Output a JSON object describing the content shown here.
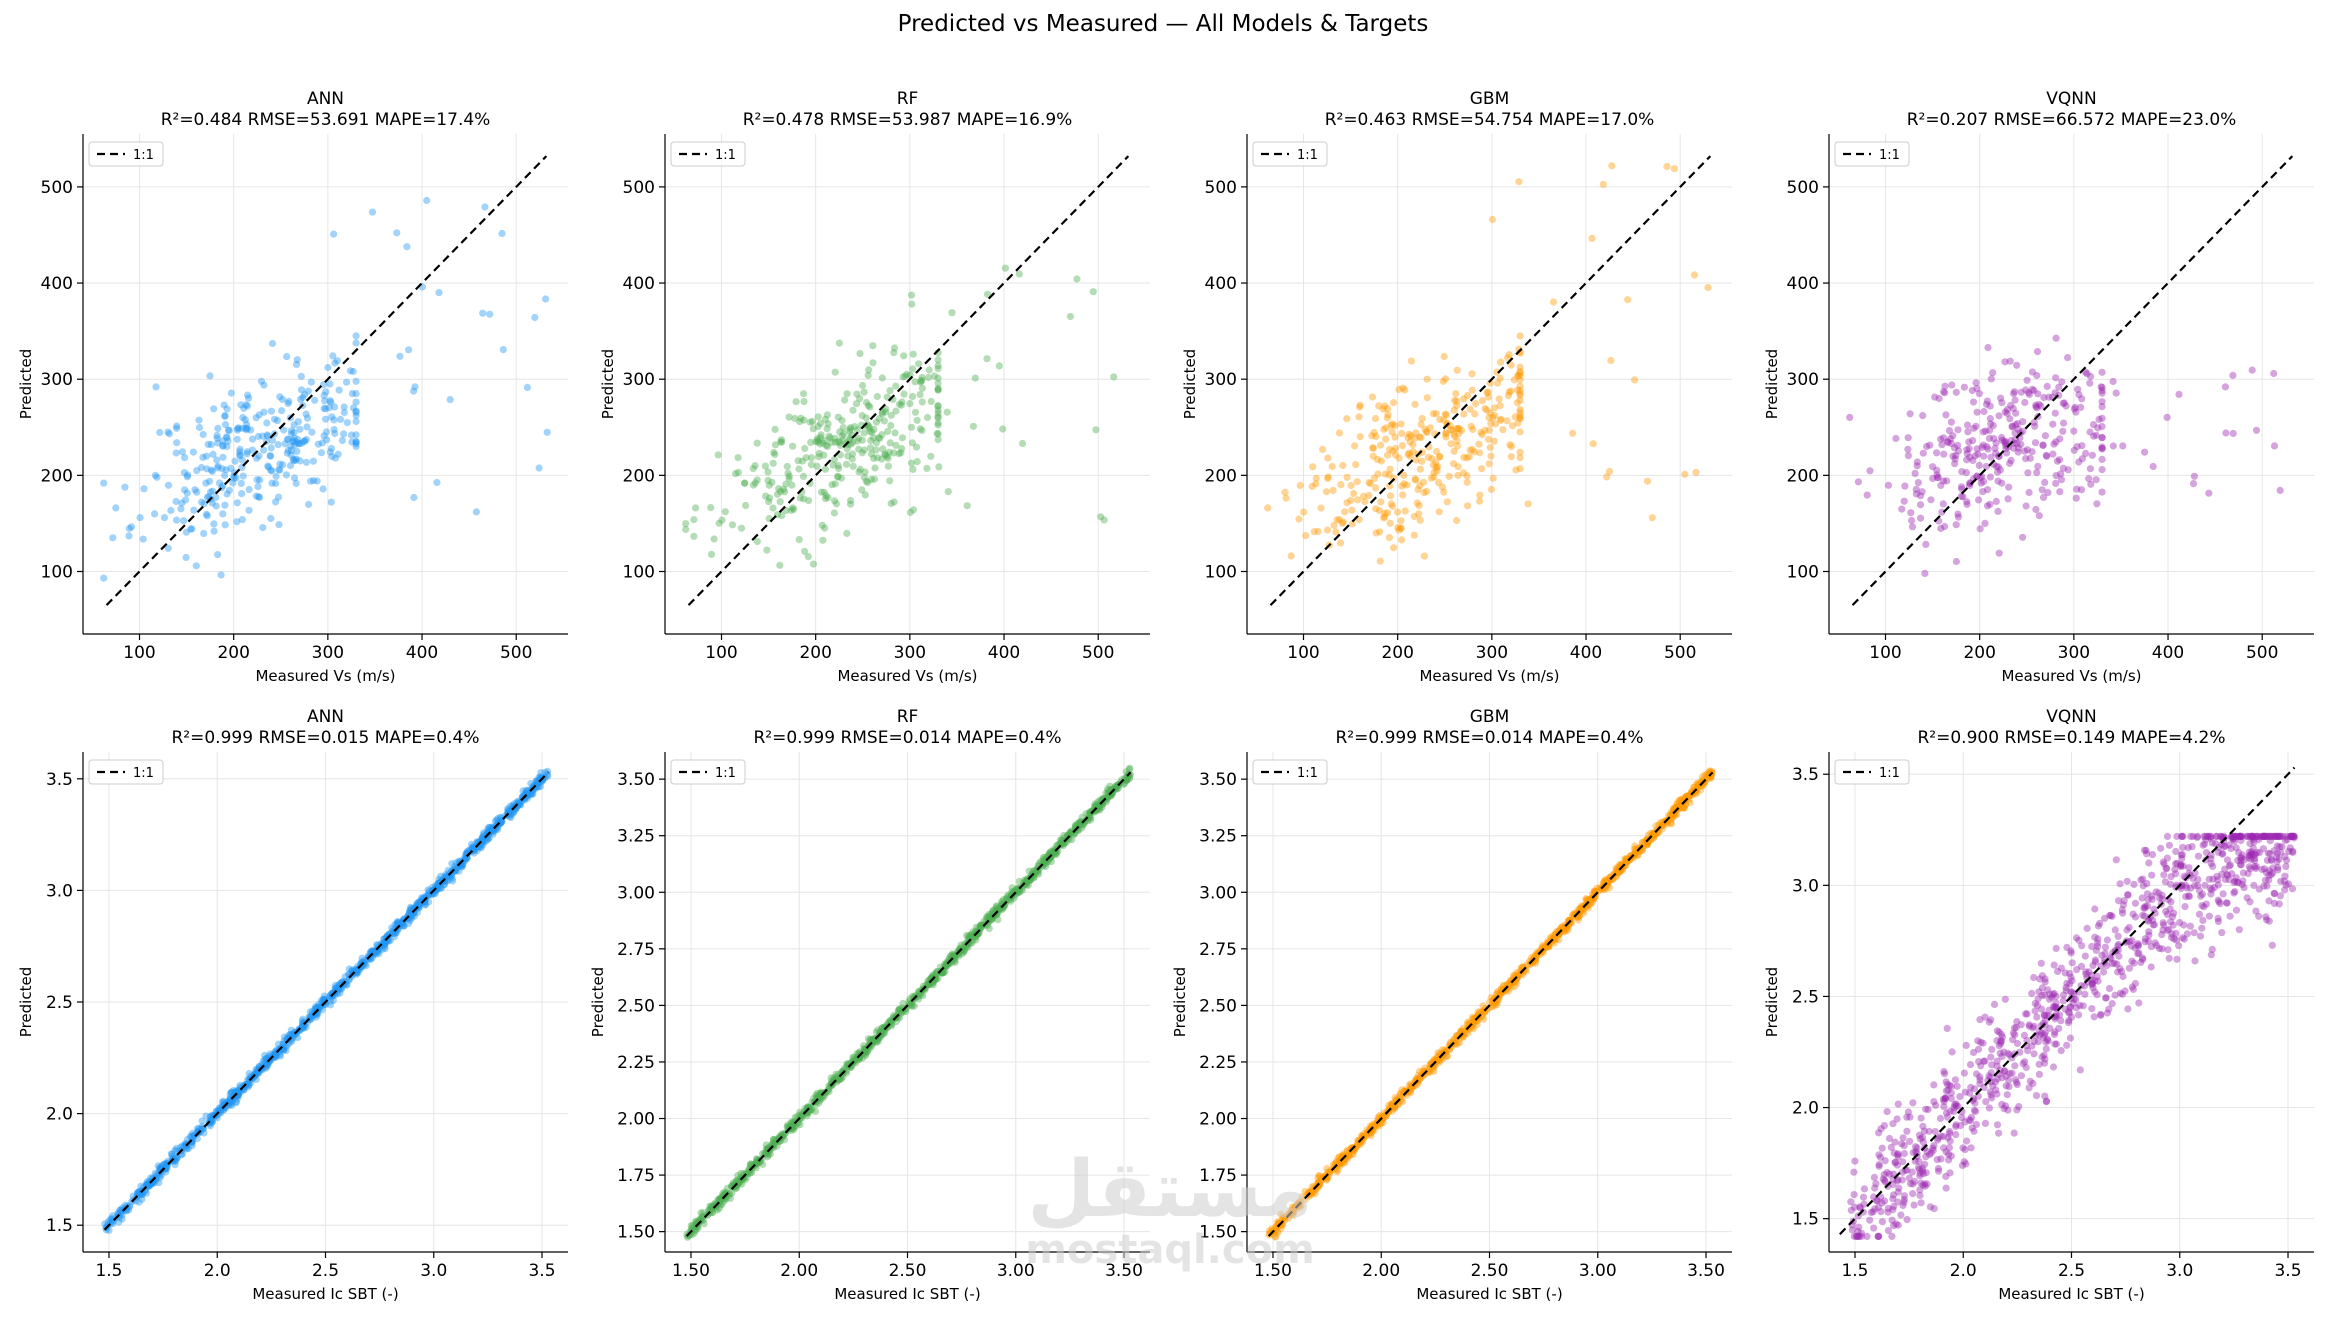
{
  "suptitle": "Predicted vs Measured — All Models & Targets",
  "watermark": {
    "arabic": "مستقل",
    "latin": "mostaql.com"
  },
  "chart_data": [
    {
      "type": "scatter",
      "model": "ANN",
      "title": "ANN",
      "subtitle": "R²=0.484  RMSE=53.691  MAPE=17.4%",
      "xlabel": "Measured Vs (m/s)",
      "ylabel": "Predicted",
      "xlim": [
        40,
        555
      ],
      "ylim": [
        35,
        555
      ],
      "xticks": [
        100,
        200,
        300,
        400,
        500
      ],
      "yticks": [
        100,
        200,
        300,
        400,
        500
      ],
      "tick_decimals": 0,
      "color": "#2196F3",
      "legend": "1:1",
      "legend_loc": "upper left",
      "grid": true,
      "line_1to1": [
        65,
        532
      ],
      "seed": 11,
      "n": 330,
      "center": 228,
      "spread": 62,
      "slope": 0.42,
      "noise": 38,
      "tail_x": [
        300,
        535
      ],
      "tail_y": [
        160,
        520
      ],
      "tail_n": 26
    },
    {
      "type": "scatter",
      "model": "RF",
      "title": "RF",
      "subtitle": "R²=0.478  RMSE=53.987  MAPE=16.9%",
      "xlabel": "Measured Vs (m/s)",
      "ylabel": "Predicted",
      "xlim": [
        40,
        555
      ],
      "ylim": [
        35,
        555
      ],
      "xticks": [
        100,
        200,
        300,
        400,
        500
      ],
      "yticks": [
        100,
        200,
        300,
        400,
        500
      ],
      "tick_decimals": 0,
      "color": "#4CAF50",
      "legend": "1:1",
      "legend_loc": "upper left",
      "grid": true,
      "line_1to1": [
        65,
        532
      ],
      "seed": 23,
      "n": 330,
      "center": 228,
      "spread": 62,
      "slope": 0.45,
      "noise": 36,
      "tail_x": [
        300,
        535
      ],
      "tail_y": [
        150,
        480
      ],
      "tail_n": 24
    },
    {
      "type": "scatter",
      "model": "GBM",
      "title": "GBM",
      "subtitle": "R²=0.463  RMSE=54.754  MAPE=17.0%",
      "xlabel": "Measured Vs (m/s)",
      "ylabel": "Predicted",
      "xlim": [
        40,
        555
      ],
      "ylim": [
        35,
        555
      ],
      "xticks": [
        100,
        200,
        300,
        400,
        500
      ],
      "yticks": [
        100,
        200,
        300,
        400,
        500
      ],
      "tick_decimals": 0,
      "color": "#FF9800",
      "legend": "1:1",
      "legend_loc": "upper left",
      "grid": true,
      "line_1to1": [
        65,
        532
      ],
      "seed": 37,
      "n": 330,
      "center": 228,
      "spread": 62,
      "slope": 0.47,
      "noise": 40,
      "tail_x": [
        300,
        535
      ],
      "tail_y": [
        150,
        535
      ],
      "tail_n": 26
    },
    {
      "type": "scatter",
      "model": "VQNN",
      "title": "VQNN",
      "subtitle": "R²=0.207  RMSE=66.572  MAPE=23.0%",
      "xlabel": "Measured Vs (m/s)",
      "ylabel": "Predicted",
      "xlim": [
        40,
        555
      ],
      "ylim": [
        35,
        555
      ],
      "xticks": [
        100,
        200,
        300,
        400,
        500
      ],
      "yticks": [
        100,
        200,
        300,
        400,
        500
      ],
      "tick_decimals": 0,
      "color": "#9C27B0",
      "legend": "1:1",
      "legend_loc": "upper left",
      "grid": true,
      "line_1to1": [
        65,
        532
      ],
      "seed": 51,
      "n": 330,
      "center": 228,
      "spread": 62,
      "slope": 0.3,
      "noise": 42,
      "tail_x": [
        300,
        535
      ],
      "tail_y": [
        170,
        310
      ],
      "tail_n": 26
    },
    {
      "type": "scatter",
      "model": "ANN",
      "title": "ANN",
      "subtitle": "R²=0.999  RMSE=0.015  MAPE=0.4%",
      "xlabel": "Measured Ic SBT (-)",
      "ylabel": "Predicted",
      "xlim": [
        1.38,
        1.5987
      ],
      "ylim": [
        1.38,
        3.62
      ],
      "xticks": [
        1.5,
        2.0,
        2.5,
        3.0,
        3.5
      ],
      "yticks": [
        1.5,
        2.0,
        2.5,
        3.0,
        3.5
      ],
      "tick_decimals": 1,
      "color": "#2196F3",
      "legend": "1:1",
      "legend_loc": "upper left",
      "grid": true,
      "line_1to1": [
        1.48,
        3.53
      ],
      "seed": 71,
      "n": 1000,
      "x_range": [
        1.48,
        3.53
      ],
      "noise_ic": 0.014
    },
    {
      "type": "scatter",
      "model": "RF",
      "title": "RF",
      "subtitle": "R²=0.999  RMSE=0.014  MAPE=0.4%",
      "xlabel": "Measured Ic SBT (-)",
      "ylabel": "Predicted",
      "xlim": [
        1.38,
        3.62
      ],
      "ylim": [
        1.41,
        3.62
      ],
      "xticks": [
        1.5,
        2.0,
        2.5,
        3.0,
        3.5
      ],
      "yticks": [
        1.5,
        1.75,
        2.0,
        2.25,
        2.5,
        2.75,
        3.0,
        3.25,
        3.5
      ],
      "tick_decimals": 2,
      "color": "#4CAF50",
      "legend": "1:1",
      "legend_loc": "upper left",
      "grid": true,
      "line_1to1": [
        1.48,
        3.53
      ],
      "seed": 83,
      "n": 1000,
      "x_range": [
        1.48,
        3.53
      ],
      "noise_ic": 0.013
    },
    {
      "type": "scatter",
      "model": "GBM",
      "title": "GBM",
      "subtitle": "R²=0.999  RMSE=0.014  MAPE=0.4%",
      "xlabel": "Measured Ic SBT (-)",
      "ylabel": "Predicted",
      "xlim": [
        1.38,
        3.62
      ],
      "ylim": [
        1.41,
        3.62
      ],
      "xticks": [
        1.5,
        2.0,
        2.5,
        3.0,
        3.5
      ],
      "yticks": [
        1.5,
        1.75,
        2.0,
        2.25,
        2.5,
        2.75,
        3.0,
        3.25,
        3.5
      ],
      "tick_decimals": 2,
      "color": "#FF9800",
      "legend": "1:1",
      "legend_loc": "upper left",
      "grid": true,
      "line_1to1": [
        1.48,
        3.53
      ],
      "seed": 97,
      "n": 1000,
      "x_range": [
        1.48,
        3.53
      ],
      "noise_ic": 0.013
    },
    {
      "type": "scatter",
      "model": "VQNN",
      "title": "VQNN",
      "subtitle": "R²=0.900  RMSE=0.149  MAPE=4.2%",
      "xlabel": "Measured Ic SBT (-)",
      "ylabel": "Predicted",
      "xlim": [
        1.38,
        3.62
      ],
      "ylim": [
        1.35,
        3.6
      ],
      "xticks": [
        1.5,
        2.0,
        2.5,
        3.0,
        3.5
      ],
      "yticks": [
        1.5,
        2.0,
        2.5,
        3.0,
        3.5
      ],
      "tick_decimals": 1,
      "color": "#9C27B0",
      "legend": "1:1",
      "legend_loc": "upper left",
      "grid": true,
      "line_1to1": [
        1.43,
        3.53
      ],
      "seed": 113,
      "n": 1000,
      "x_range": [
        1.48,
        3.53
      ],
      "noise_ic": 0.15,
      "saturate_at": 3.22
    }
  ]
}
